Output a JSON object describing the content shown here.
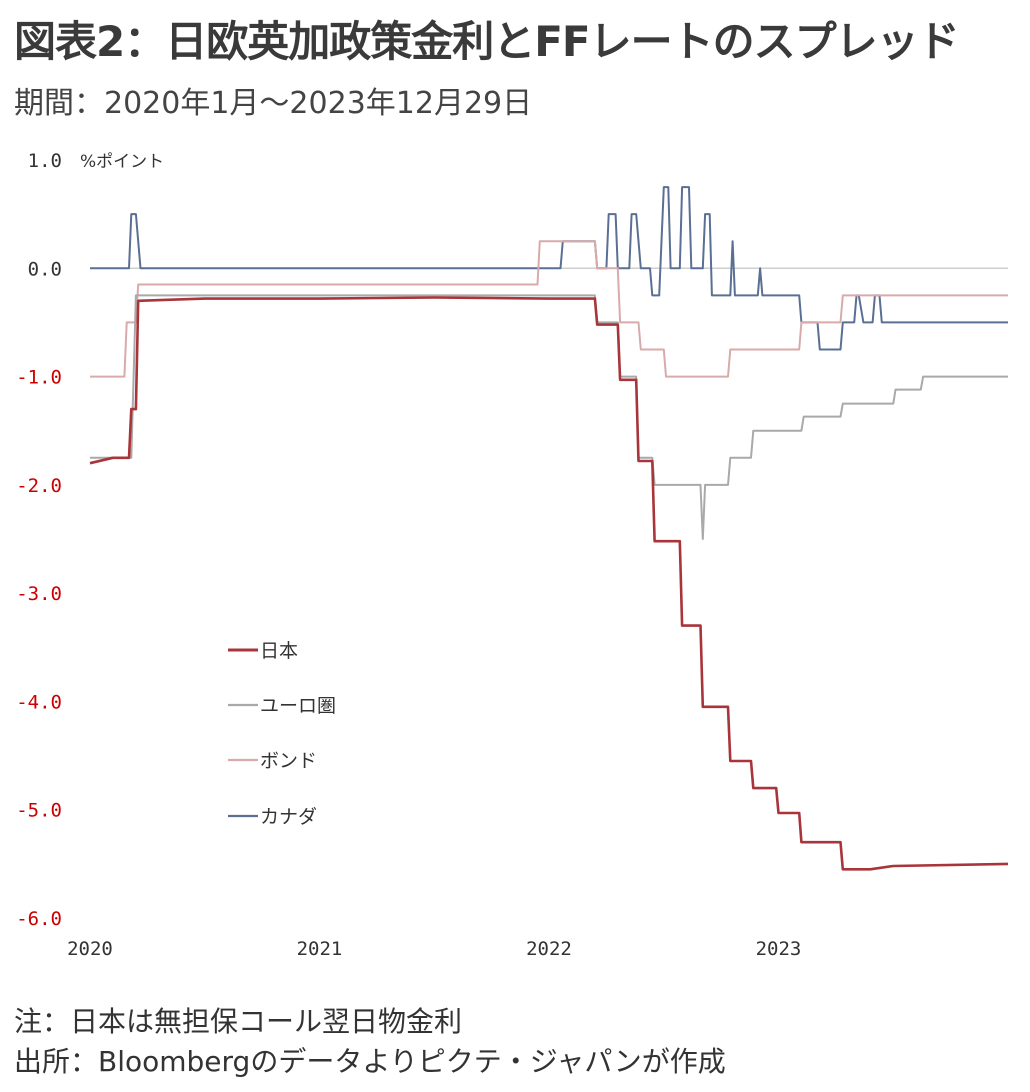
{
  "title": "図表2：日欧英加政策金利とFFレートのスプレッド",
  "subtitle": "期間：2020年1月～2023年12月29日",
  "notes": {
    "note": "注：日本は無担保コール翌日物金利",
    "source": "出所：Bloombergのデータよりピクテ・ジャパンが作成"
  },
  "chart_data": {
    "type": "line",
    "title": "",
    "ylabel_unit": "%ポイント",
    "ylim": [
      -6.0,
      1.0
    ],
    "xlim": [
      2020.0,
      2024.0
    ],
    "grid": false,
    "zero_line": true,
    "legend_position": "left-middle",
    "y_ticks": [
      {
        "value": 1.0,
        "label": "1.0",
        "color": "#333333"
      },
      {
        "value": 0.0,
        "label": "0.0",
        "color": "#333333"
      },
      {
        "value": -1.0,
        "label": "-1.0",
        "color": "#cc0000"
      },
      {
        "value": -2.0,
        "label": "-2.0",
        "color": "#cc0000"
      },
      {
        "value": -3.0,
        "label": "-3.0",
        "color": "#cc0000"
      },
      {
        "value": -4.0,
        "label": "-4.0",
        "color": "#cc0000"
      },
      {
        "value": -5.0,
        "label": "-5.0",
        "color": "#cc0000"
      },
      {
        "value": -6.0,
        "label": "-6.0",
        "color": "#cc0000"
      }
    ],
    "x_ticks": [
      {
        "value": 2020.0,
        "label": "2020"
      },
      {
        "value": 2021.0,
        "label": "2021"
      },
      {
        "value": 2022.0,
        "label": "2022"
      },
      {
        "value": 2023.0,
        "label": "2023"
      }
    ],
    "series": [
      {
        "name": "日本",
        "color": "#a8353a",
        "points": [
          [
            2020.0,
            -1.8
          ],
          [
            2020.1,
            -1.75
          ],
          [
            2020.17,
            -1.75
          ],
          [
            2020.18,
            -1.3
          ],
          [
            2020.2,
            -1.3
          ],
          [
            2020.21,
            -0.3
          ],
          [
            2020.5,
            -0.28
          ],
          [
            2021.0,
            -0.28
          ],
          [
            2021.5,
            -0.27
          ],
          [
            2022.0,
            -0.28
          ],
          [
            2022.2,
            -0.28
          ],
          [
            2022.21,
            -0.52
          ],
          [
            2022.3,
            -0.52
          ],
          [
            2022.31,
            -1.03
          ],
          [
            2022.38,
            -1.03
          ],
          [
            2022.39,
            -1.78
          ],
          [
            2022.45,
            -1.78
          ],
          [
            2022.46,
            -2.52
          ],
          [
            2022.57,
            -2.52
          ],
          [
            2022.58,
            -3.3
          ],
          [
            2022.66,
            -3.3
          ],
          [
            2022.67,
            -4.05
          ],
          [
            2022.78,
            -4.05
          ],
          [
            2022.79,
            -4.55
          ],
          [
            2022.88,
            -4.55
          ],
          [
            2022.89,
            -4.8
          ],
          [
            2022.99,
            -4.8
          ],
          [
            2023.0,
            -5.03
          ],
          [
            2023.09,
            -5.03
          ],
          [
            2023.1,
            -5.3
          ],
          [
            2023.27,
            -5.3
          ],
          [
            2023.28,
            -5.55
          ],
          [
            2023.4,
            -5.55
          ],
          [
            2023.5,
            -5.52
          ],
          [
            2024.0,
            -5.5
          ]
        ]
      },
      {
        "name": "ユーロ圏",
        "color": "#a9a9a9",
        "points": [
          [
            2020.0,
            -1.75
          ],
          [
            2020.18,
            -1.75
          ],
          [
            2020.2,
            -0.25
          ],
          [
            2022.2,
            -0.25
          ],
          [
            2022.21,
            -0.5
          ],
          [
            2022.3,
            -0.5
          ],
          [
            2022.31,
            -1.0
          ],
          [
            2022.38,
            -1.0
          ],
          [
            2022.39,
            -1.75
          ],
          [
            2022.45,
            -1.75
          ],
          [
            2022.46,
            -2.0
          ],
          [
            2022.66,
            -2.0
          ],
          [
            2022.67,
            -2.5
          ],
          [
            2022.68,
            -2.0
          ],
          [
            2022.78,
            -2.0
          ],
          [
            2022.79,
            -1.75
          ],
          [
            2022.88,
            -1.75
          ],
          [
            2022.89,
            -1.5
          ],
          [
            2023.0,
            -1.5
          ],
          [
            2023.1,
            -1.5
          ],
          [
            2023.11,
            -1.37
          ],
          [
            2023.27,
            -1.37
          ],
          [
            2023.28,
            -1.25
          ],
          [
            2023.5,
            -1.25
          ],
          [
            2023.51,
            -1.12
          ],
          [
            2023.62,
            -1.12
          ],
          [
            2023.63,
            -1.0
          ],
          [
            2024.0,
            -1.0
          ]
        ]
      },
      {
        "name": "ボンド",
        "color": "#d9aaaa",
        "points": [
          [
            2020.0,
            -1.0
          ],
          [
            2020.15,
            -1.0
          ],
          [
            2020.16,
            -0.5
          ],
          [
            2020.2,
            -0.5
          ],
          [
            2020.21,
            -0.15
          ],
          [
            2021.95,
            -0.15
          ],
          [
            2021.96,
            0.25
          ],
          [
            2022.2,
            0.25
          ],
          [
            2022.21,
            0.0
          ],
          [
            2022.3,
            0.0
          ],
          [
            2022.31,
            -0.5
          ],
          [
            2022.39,
            -0.5
          ],
          [
            2022.4,
            -0.75
          ],
          [
            2022.5,
            -0.75
          ],
          [
            2022.51,
            -1.0
          ],
          [
            2022.78,
            -1.0
          ],
          [
            2022.79,
            -0.75
          ],
          [
            2022.9,
            -0.75
          ],
          [
            2023.09,
            -0.75
          ],
          [
            2023.1,
            -0.5
          ],
          [
            2023.27,
            -0.5
          ],
          [
            2023.28,
            -0.25
          ],
          [
            2024.0,
            -0.25
          ]
        ]
      },
      {
        "name": "カナダ",
        "color": "#5a6f93",
        "points": [
          [
            2020.0,
            0.0
          ],
          [
            2020.17,
            0.0
          ],
          [
            2020.18,
            0.5
          ],
          [
            2020.2,
            0.5
          ],
          [
            2020.22,
            0.0
          ],
          [
            2022.05,
            0.0
          ],
          [
            2022.06,
            0.25
          ],
          [
            2022.2,
            0.25
          ],
          [
            2022.21,
            0.0
          ],
          [
            2022.25,
            0.0
          ],
          [
            2022.26,
            0.5
          ],
          [
            2022.29,
            0.5
          ],
          [
            2022.3,
            0.0
          ],
          [
            2022.35,
            0.0
          ],
          [
            2022.36,
            0.5
          ],
          [
            2022.38,
            0.5
          ],
          [
            2022.4,
            0.0
          ],
          [
            2022.44,
            0.0
          ],
          [
            2022.45,
            -0.25
          ],
          [
            2022.48,
            -0.25
          ],
          [
            2022.5,
            0.75
          ],
          [
            2022.52,
            0.75
          ],
          [
            2022.53,
            0.0
          ],
          [
            2022.57,
            0.0
          ],
          [
            2022.58,
            0.75
          ],
          [
            2022.61,
            0.75
          ],
          [
            2022.62,
            0.0
          ],
          [
            2022.67,
            0.0
          ],
          [
            2022.68,
            0.5
          ],
          [
            2022.7,
            0.5
          ],
          [
            2022.71,
            -0.25
          ],
          [
            2022.79,
            -0.25
          ],
          [
            2022.8,
            0.25
          ],
          [
            2022.81,
            -0.25
          ],
          [
            2022.91,
            -0.25
          ],
          [
            2022.92,
            0.0
          ],
          [
            2022.93,
            -0.25
          ],
          [
            2023.09,
            -0.25
          ],
          [
            2023.1,
            -0.5
          ],
          [
            2023.17,
            -0.5
          ],
          [
            2023.18,
            -0.75
          ],
          [
            2023.27,
            -0.75
          ],
          [
            2023.28,
            -0.5
          ],
          [
            2023.33,
            -0.5
          ],
          [
            2023.34,
            -0.25
          ],
          [
            2023.35,
            -0.25
          ],
          [
            2023.37,
            -0.5
          ],
          [
            2023.41,
            -0.5
          ],
          [
            2023.42,
            -0.25
          ],
          [
            2023.44,
            -0.25
          ],
          [
            2023.45,
            -0.5
          ],
          [
            2024.0,
            -0.5
          ]
        ]
      }
    ]
  }
}
